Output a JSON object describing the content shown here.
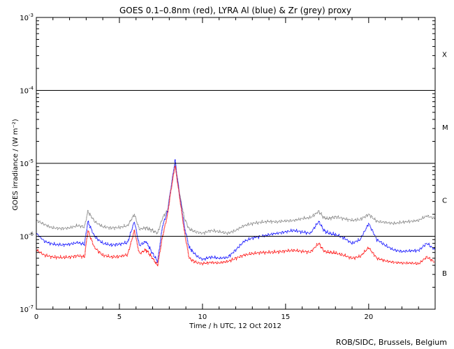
{
  "chart_data": {
    "type": "line",
    "title": "GOES 0.1–0.8nm (red), LYRA Al (blue) & Zr (grey) proxy",
    "xlabel": "Time / h UTC, 12 Oct 2012",
    "ylabel": "GOES irradiance / (W m⁻²)",
    "xlim": [
      0,
      24
    ],
    "ylim": [
      1e-07,
      0.001
    ],
    "y_scale": "log",
    "x_ticks": [
      0,
      5,
      10,
      15,
      20
    ],
    "x_tick_labels": [
      "0",
      "5",
      "10",
      "15",
      "20"
    ],
    "y_ticks": [
      1e-07,
      1e-06,
      1e-05,
      0.0001,
      0.001
    ],
    "y_tick_labels": [
      {
        "base": "10",
        "exp": "-7"
      },
      {
        "base": "10",
        "exp": "-6"
      },
      {
        "base": "10",
        "exp": "-5"
      },
      {
        "base": "10",
        "exp": "-4"
      },
      {
        "base": "10",
        "exp": "-3"
      }
    ],
    "flare_levels": [
      1e-06,
      1e-05,
      0.0001
    ],
    "flare_classes": [
      {
        "label": "X",
        "y_low": 0.0001,
        "y_high": 0.001
      },
      {
        "label": "M",
        "y_low": 1e-05,
        "y_high": 0.0001
      },
      {
        "label": "C",
        "y_low": 1e-06,
        "y_high": 1e-05
      },
      {
        "label": "B",
        "y_low": 1e-07,
        "y_high": 1e-06
      }
    ],
    "grid": false,
    "series": [
      {
        "color": "#808080",
        "x": [
          0,
          0.5,
          1,
          1.5,
          2,
          2.5,
          2.9,
          3.1,
          3.5,
          4,
          4.5,
          5,
          5.5,
          5.9,
          6.2,
          6.6,
          7.0,
          7.3,
          7.6,
          7.9,
          8.1,
          8.35,
          8.6,
          8.9,
          9.2,
          9.6,
          10,
          10.5,
          11,
          11.5,
          12,
          12.5,
          13,
          13.5,
          14,
          14.5,
          15,
          15.5,
          16,
          16.5,
          17,
          17.3,
          17.6,
          18,
          18.5,
          19,
          19.5,
          20,
          20.5,
          21,
          21.5,
          22,
          22.5,
          23,
          23.5,
          24
        ],
        "values": [
          1.65e-06,
          1.45e-06,
          1.3e-06,
          1.28e-06,
          1.3e-06,
          1.4e-06,
          1.35e-06,
          2.2e-06,
          1.6e-06,
          1.35e-06,
          1.3e-06,
          1.32e-06,
          1.4e-06,
          2e-06,
          1.25e-06,
          1.3e-06,
          1.2e-06,
          1.1e-06,
          1.8e-06,
          2.3e-06,
          4.5e-06,
          9.8e-06,
          4e-06,
          1.8e-06,
          1.25e-06,
          1.15e-06,
          1.1e-06,
          1.2e-06,
          1.15e-06,
          1.1e-06,
          1.2e-06,
          1.4e-06,
          1.5e-06,
          1.55e-06,
          1.6e-06,
          1.58e-06,
          1.62e-06,
          1.65e-06,
          1.75e-06,
          1.8e-06,
          2.2e-06,
          1.8e-06,
          1.75e-06,
          1.85e-06,
          1.75e-06,
          1.65e-06,
          1.7e-06,
          2e-06,
          1.6e-06,
          1.55e-06,
          1.5e-06,
          1.55e-06,
          1.6e-06,
          1.65e-06,
          1.9e-06,
          1.75e-06
        ]
      },
      {
        "color": "#0000ff",
        "x": [
          0,
          0.5,
          1,
          1.5,
          2,
          2.5,
          2.9,
          3.1,
          3.5,
          4,
          4.5,
          5,
          5.5,
          5.9,
          6.2,
          6.6,
          7.0,
          7.3,
          7.6,
          7.9,
          8.1,
          8.35,
          8.6,
          8.9,
          9.2,
          9.6,
          10,
          10.5,
          11,
          11.5,
          12,
          12.5,
          13,
          13.5,
          14,
          14.5,
          15,
          15.5,
          16,
          16.5,
          17,
          17.3,
          17.6,
          18,
          18.5,
          19,
          19.5,
          20,
          20.5,
          21,
          21.5,
          22,
          22.5,
          23,
          23.5,
          24
        ],
        "values": [
          1.1e-06,
          8.5e-07,
          7.8e-07,
          7.6e-07,
          7.8e-07,
          8.2e-07,
          7.8e-07,
          1.6e-06,
          1e-06,
          8e-07,
          7.6e-07,
          7.8e-07,
          8.2e-07,
          1.6e-06,
          7.5e-07,
          8.5e-07,
          5.8e-07,
          4.5e-07,
          1.4e-06,
          2.2e-06,
          4.5e-06,
          1.1e-05,
          4e-06,
          1.4e-06,
          7e-07,
          5.5e-07,
          4.8e-07,
          5.2e-07,
          5e-07,
          5.1e-07,
          6.5e-07,
          8.5e-07,
          9.5e-07,
          1e-06,
          1.05e-06,
          1.1e-06,
          1.15e-06,
          1.2e-06,
          1.15e-06,
          1.1e-06,
          1.6e-06,
          1.2e-06,
          1.1e-06,
          1.05e-06,
          9.5e-07,
          8e-07,
          9e-07,
          1.5e-06,
          9e-07,
          7.5e-07,
          6.5e-07,
          6.2e-07,
          6.3e-07,
          6.4e-07,
          8e-07,
          6.5e-07
        ]
      },
      {
        "color": "#ff0000",
        "x": [
          0,
          0.5,
          1,
          1.5,
          2,
          2.5,
          2.9,
          3.1,
          3.5,
          4,
          4.5,
          5,
          5.5,
          5.9,
          6.2,
          6.6,
          7.0,
          7.3,
          7.6,
          7.9,
          8.1,
          8.35,
          8.6,
          8.9,
          9.2,
          9.6,
          10,
          10.5,
          11,
          11.5,
          12,
          12.5,
          13,
          13.5,
          14,
          14.5,
          15,
          15.5,
          16,
          16.5,
          17,
          17.3,
          17.6,
          18,
          18.5,
          19,
          19.5,
          20,
          20.5,
          21,
          21.5,
          22,
          22.5,
          23,
          23.5,
          24
        ],
        "values": [
          6.5e-07,
          5.5e-07,
          5.2e-07,
          5.1e-07,
          5.2e-07,
          5.4e-07,
          5.2e-07,
          1.2e-06,
          7e-07,
          5.5e-07,
          5.2e-07,
          5.3e-07,
          5.6e-07,
          1.2e-06,
          5.8e-07,
          6.5e-07,
          5e-07,
          4e-07,
          1e-06,
          2e-06,
          4.2e-06,
          9.5e-06,
          3.8e-06,
          1.2e-06,
          5e-07,
          4.4e-07,
          4.2e-07,
          4.4e-07,
          4.3e-07,
          4.5e-07,
          5e-07,
          5.5e-07,
          5.8e-07,
          6e-07,
          6e-07,
          6.1e-07,
          6.3e-07,
          6.4e-07,
          6.2e-07,
          6.1e-07,
          8e-07,
          6.3e-07,
          6e-07,
          5.9e-07,
          5.5e-07,
          5e-07,
          5.3e-07,
          7e-07,
          5e-07,
          4.6e-07,
          4.4e-07,
          4.3e-07,
          4.3e-07,
          4.2e-07,
          5.2e-07,
          4.4e-07
        ]
      }
    ]
  },
  "credit": "ROB/SIDC, Brussels, Belgium"
}
